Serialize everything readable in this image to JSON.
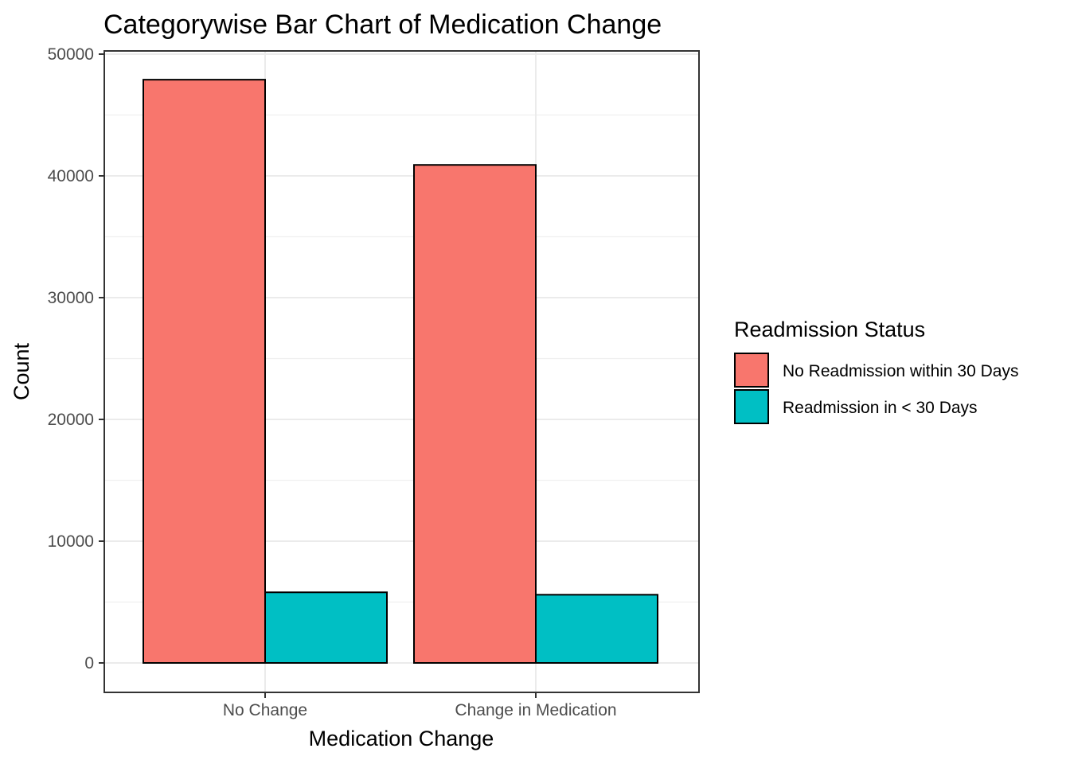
{
  "chart_data": {
    "type": "bar",
    "title": "Categorywise Bar Chart of Medication Change",
    "xlabel": "Medication Change",
    "ylabel": "Count",
    "categories": [
      "No Change",
      "Change in Medication"
    ],
    "series": [
      {
        "name": "No Readmission within 30 Days",
        "color": "#F8766D",
        "values": [
          47900,
          40900
        ]
      },
      {
        "name": "Readmission in < 30 Days",
        "color": "#00BFC4",
        "values": [
          5800,
          5600
        ]
      }
    ],
    "ylim": [
      0,
      50000
    ],
    "y_ticks": [
      "0",
      "10000",
      "20000",
      "30000",
      "40000",
      "50000"
    ],
    "grid": true,
    "legend": {
      "title": "Readmission Status",
      "position": "right"
    }
  }
}
